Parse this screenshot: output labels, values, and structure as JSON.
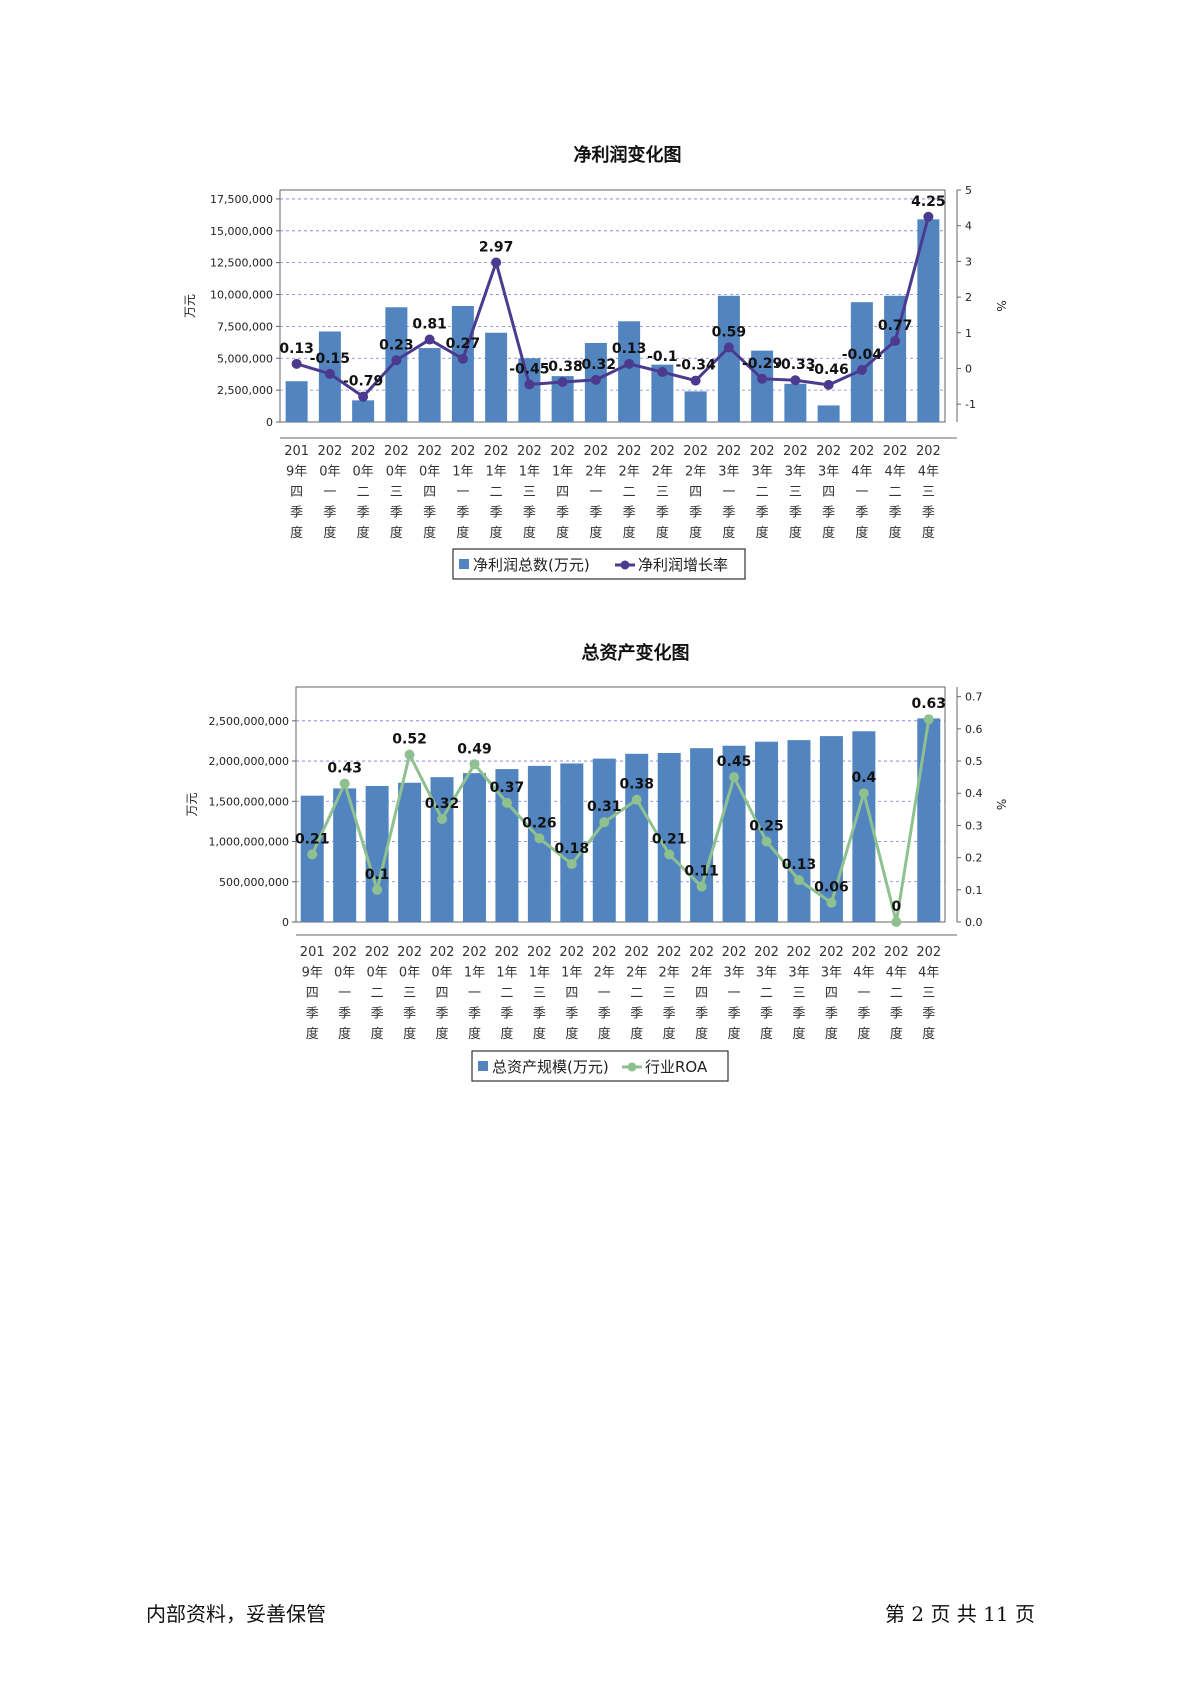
{
  "page": {
    "footer_left": "内部资料，妥善保管",
    "footer_right": "第 2 页   共 11 页"
  },
  "chart_data": [
    {
      "id": "chart1",
      "type": "bar+line",
      "title": "净利润变化图",
      "ylabel_left": "万元",
      "ylabel_right": "%",
      "ylim_left": [
        0,
        18200000
      ],
      "yticks_left": [
        0,
        2500000,
        5000000,
        7500000,
        10000000,
        12500000,
        15000000,
        17500000
      ],
      "ytick_labels_left": [
        "0",
        "2,500,000",
        "5,000,000",
        "7,500,000",
        "10,000,000",
        "12,500,000",
        "15,000,000",
        "17,500,000"
      ],
      "ylim_right": [
        -1.5,
        5
      ],
      "yticks_right": [
        -1,
        0,
        1,
        2,
        3,
        4,
        5
      ],
      "ytick_labels_right": [
        "-1",
        "0",
        "1",
        "2",
        "3",
        "4",
        "5"
      ],
      "grid": true,
      "categories": [
        [
          "201",
          "9年",
          "四",
          "季",
          "度"
        ],
        [
          "202",
          "0年",
          "一",
          "季",
          "度"
        ],
        [
          "202",
          "0年",
          "二",
          "季",
          "度"
        ],
        [
          "202",
          "0年",
          "三",
          "季",
          "度"
        ],
        [
          "202",
          "0年",
          "四",
          "季",
          "度"
        ],
        [
          "202",
          "1年",
          "一",
          "季",
          "度"
        ],
        [
          "202",
          "1年",
          "二",
          "季",
          "度"
        ],
        [
          "202",
          "1年",
          "三",
          "季",
          "度"
        ],
        [
          "202",
          "1年",
          "四",
          "季",
          "度"
        ],
        [
          "202",
          "2年",
          "一",
          "季",
          "度"
        ],
        [
          "202",
          "2年",
          "二",
          "季",
          "度"
        ],
        [
          "202",
          "2年",
          "三",
          "季",
          "度"
        ],
        [
          "202",
          "2年",
          "四",
          "季",
          "度"
        ],
        [
          "202",
          "3年",
          "一",
          "季",
          "度"
        ],
        [
          "202",
          "3年",
          "二",
          "季",
          "度"
        ],
        [
          "202",
          "3年",
          "三",
          "季",
          "度"
        ],
        [
          "202",
          "3年",
          "四",
          "季",
          "度"
        ],
        [
          "202",
          "4年",
          "一",
          "季",
          "度"
        ],
        [
          "202",
          "4年",
          "二",
          "季",
          "度"
        ],
        [
          "202",
          "4年",
          "三",
          "季",
          "度"
        ]
      ],
      "series": [
        {
          "name": "净利润总数(万元)",
          "kind": "bar",
          "axis": "left",
          "color": "#5285c0",
          "values": [
            3200000,
            7100000,
            1700000,
            9000000,
            5800000,
            9100000,
            7000000,
            5000000,
            3600000,
            6200000,
            7900000,
            4500000,
            2400000,
            9900000,
            5600000,
            3000000,
            1300000,
            9400000,
            9900000,
            15900000
          ]
        },
        {
          "name": "净利润增长率",
          "kind": "line",
          "axis": "right",
          "color": "#4b3a8e",
          "values": [
            0.13,
            -0.15,
            -0.79,
            0.23,
            0.81,
            0.27,
            2.97,
            -0.45,
            -0.38,
            -0.32,
            0.13,
            -0.1,
            -0.34,
            0.59,
            -0.29,
            -0.33,
            -0.46,
            -0.04,
            0.77,
            4.25
          ],
          "labels": [
            "0.13",
            "-0.15",
            "-0.79",
            "0.23",
            "0.81",
            "0.27",
            "2.97",
            "-0.45",
            "-0.38",
            "-0.32",
            "0.13",
            "-0.1",
            "-0.34",
            "0.59",
            "-0.29",
            "-0.33",
            "-0.46",
            "-0.04",
            "0.77",
            "4.25"
          ]
        }
      ],
      "legend": [
        "净利润总数(万元)",
        "净利润增长率"
      ],
      "legend_position": "bottom"
    },
    {
      "id": "chart2",
      "type": "bar+line",
      "title": "总资产变化图",
      "ylabel_left": "万元",
      "ylabel_right": "%",
      "ylim_left": [
        0,
        2920000000
      ],
      "yticks_left": [
        0,
        500000000,
        1000000000,
        1500000000,
        2000000000,
        2500000000
      ],
      "ytick_labels_left": [
        "0",
        "500,000,000",
        "1,000,000,000",
        "1,500,000,000",
        "2,000,000,000",
        "2,500,000,000"
      ],
      "ylim_right": [
        0,
        0.73
      ],
      "yticks_right": [
        0,
        0.1,
        0.2,
        0.3,
        0.4,
        0.5,
        0.6,
        0.7
      ],
      "ytick_labels_right": [
        "0.0",
        "0.1",
        "0.2",
        "0.3",
        "0.4",
        "0.5",
        "0.6",
        "0.7"
      ],
      "grid": true,
      "categories": [
        [
          "201",
          "9年",
          "四",
          "季",
          "度"
        ],
        [
          "202",
          "0年",
          "一",
          "季",
          "度"
        ],
        [
          "202",
          "0年",
          "二",
          "季",
          "度"
        ],
        [
          "202",
          "0年",
          "三",
          "季",
          "度"
        ],
        [
          "202",
          "0年",
          "四",
          "季",
          "度"
        ],
        [
          "202",
          "1年",
          "一",
          "季",
          "度"
        ],
        [
          "202",
          "1年",
          "二",
          "季",
          "度"
        ],
        [
          "202",
          "1年",
          "三",
          "季",
          "度"
        ],
        [
          "202",
          "1年",
          "四",
          "季",
          "度"
        ],
        [
          "202",
          "2年",
          "一",
          "季",
          "度"
        ],
        [
          "202",
          "2年",
          "二",
          "季",
          "度"
        ],
        [
          "202",
          "2年",
          "三",
          "季",
          "度"
        ],
        [
          "202",
          "2年",
          "四",
          "季",
          "度"
        ],
        [
          "202",
          "3年",
          "一",
          "季",
          "度"
        ],
        [
          "202",
          "3年",
          "二",
          "季",
          "度"
        ],
        [
          "202",
          "3年",
          "三",
          "季",
          "度"
        ],
        [
          "202",
          "3年",
          "四",
          "季",
          "度"
        ],
        [
          "202",
          "4年",
          "一",
          "季",
          "度"
        ],
        [
          "202",
          "4年",
          "二",
          "季",
          "度"
        ],
        [
          "202",
          "4年",
          "三",
          "季",
          "度"
        ]
      ],
      "series": [
        {
          "name": "总资产规模(万元)",
          "kind": "bar",
          "axis": "left",
          "color": "#5285c0",
          "values": [
            1570000000,
            1660000000,
            1690000000,
            1730000000,
            1800000000,
            1850000000,
            1900000000,
            1940000000,
            1970000000,
            2030000000,
            2090000000,
            2100000000,
            2160000000,
            2190000000,
            2240000000,
            2260000000,
            2310000000,
            2370000000,
            0,
            2530000000
          ]
        },
        {
          "name": "行业ROA",
          "kind": "line",
          "axis": "right",
          "color": "#8fc08f",
          "values": [
            0.21,
            0.43,
            0.1,
            0.52,
            0.32,
            0.49,
            0.37,
            0.26,
            0.18,
            0.31,
            0.38,
            0.21,
            0.11,
            0.45,
            0.25,
            0.13,
            0.06,
            0.4,
            0,
            0.63
          ],
          "labels": [
            "0.21",
            "0.43",
            "0.1",
            "0.52",
            "0.32",
            "0.49",
            "0.37",
            "0.26",
            "0.18",
            "0.31",
            "0.38",
            "0.21",
            "0.11",
            "0.45",
            "0.25",
            "0.13",
            "0.06",
            "0.4",
            "0",
            "0.63"
          ]
        }
      ],
      "legend": [
        "总资产规模(万元)",
        "行业ROA"
      ],
      "legend_position": "bottom"
    }
  ]
}
